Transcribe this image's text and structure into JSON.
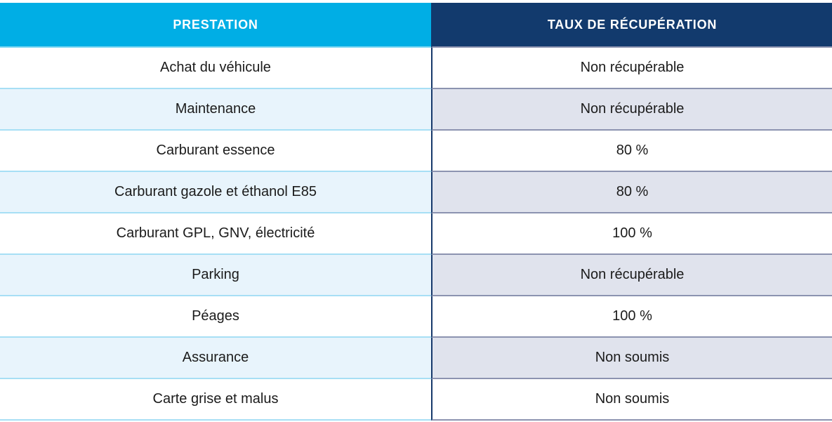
{
  "colors": {
    "header_left_bg": "#00aee5",
    "header_right_bg": "#123a6d",
    "row_alt_left_bg": "#e8f4fc",
    "row_alt_right_bg": "#e0e3ed",
    "separator_left": "#a7dff5",
    "separator_right": "#8c93b0",
    "column_divider": "#16396b",
    "header_text": "#ffffff",
    "body_text": "#1b1b1b"
  },
  "table": {
    "columns": [
      {
        "label": "PRESTATION"
      },
      {
        "label": "TAUX DE RÉCUPÉRATION"
      }
    ],
    "rows": [
      {
        "prestation": "Achat du véhicule",
        "taux": "Non récupérable"
      },
      {
        "prestation": "Maintenance",
        "taux": "Non récupérable"
      },
      {
        "prestation": "Carburant essence",
        "taux": "80 %"
      },
      {
        "prestation": "Carburant gazole et éthanol E85",
        "taux": "80 %"
      },
      {
        "prestation": "Carburant GPL, GNV, électricité",
        "taux": "100 %"
      },
      {
        "prestation": "Parking",
        "taux": "Non récupérable"
      },
      {
        "prestation": "Péages",
        "taux": "100 %"
      },
      {
        "prestation": "Assurance",
        "taux": "Non soumis"
      },
      {
        "prestation": "Carte grise et malus",
        "taux": "Non soumis"
      }
    ]
  },
  "chart_data": {
    "type": "table",
    "title": "",
    "columns": [
      "PRESTATION",
      "TAUX DE RÉCUPÉRATION"
    ],
    "rows": [
      [
        "Achat du véhicule",
        "Non récupérable"
      ],
      [
        "Maintenance",
        "Non récupérable"
      ],
      [
        "Carburant essence",
        "80 %"
      ],
      [
        "Carburant gazole et éthanol E85",
        "80 %"
      ],
      [
        "Carburant GPL, GNV, électricité",
        "100 %"
      ],
      [
        "Parking",
        "Non récupérable"
      ],
      [
        "Péages",
        "100 %"
      ],
      [
        "Assurance",
        "Non soumis"
      ],
      [
        "Carte grise et malus",
        "Non soumis"
      ]
    ]
  }
}
